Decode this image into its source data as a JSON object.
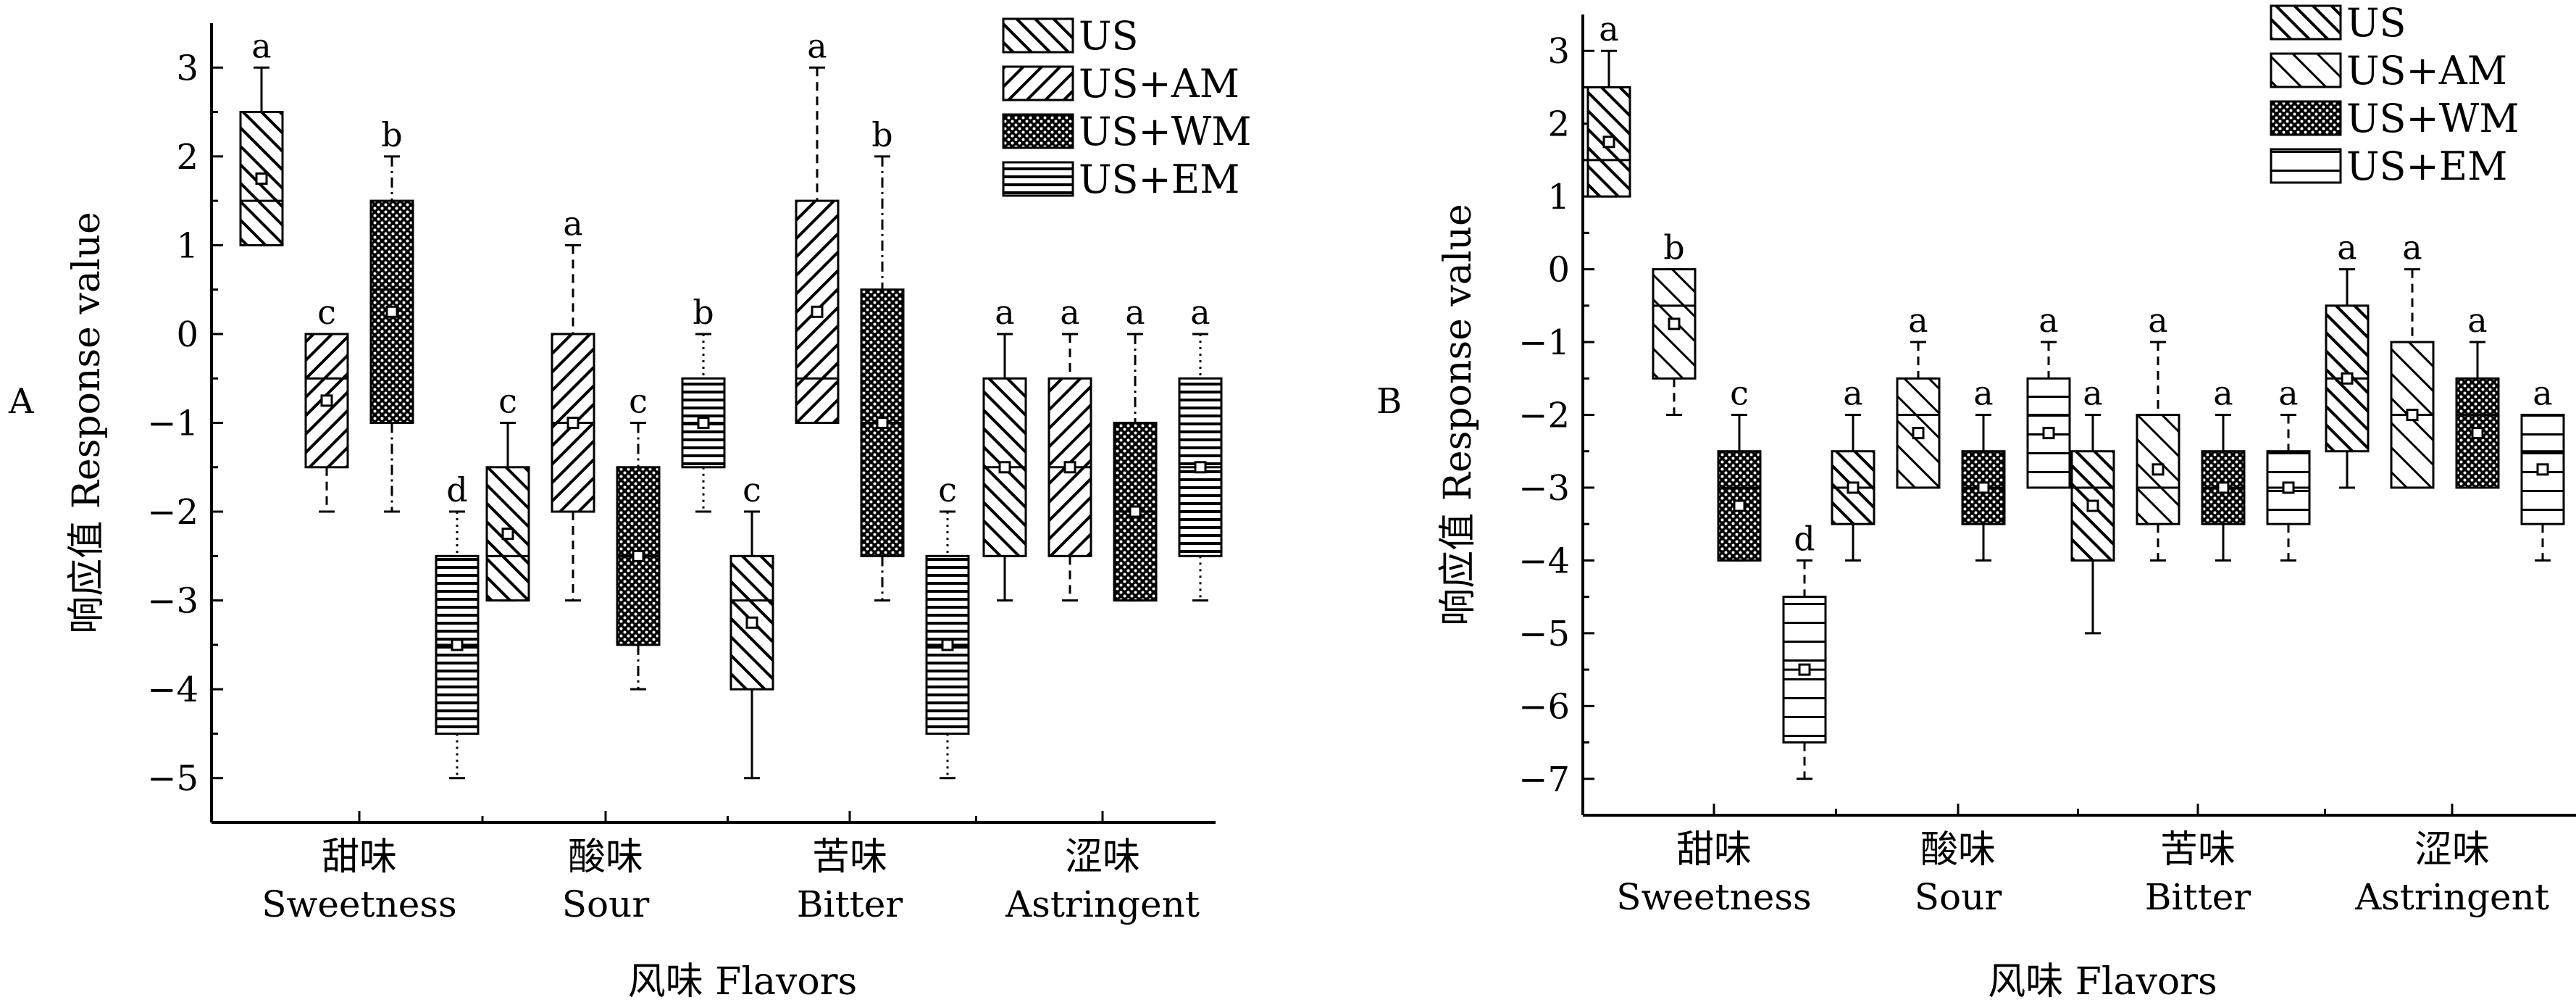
{
  "chart_data": [
    {
      "panel_label": "A",
      "type": "box",
      "xlabel": "风味 Flavors",
      "ylabel": "响应值 Response value",
      "ylim": [
        -5.5,
        3.5
      ],
      "yticks": [
        -5,
        -4,
        -3,
        -2,
        -1,
        0,
        1,
        2,
        3
      ],
      "categories": [
        {
          "cn": "甜味",
          "en": "Sweetness"
        },
        {
          "cn": "酸味",
          "en": "Sour"
        },
        {
          "cn": "苦味",
          "en": "Bitter"
        },
        {
          "cn": "涩味",
          "en": "Astringent"
        }
      ],
      "legend": {
        "placement": "top-center",
        "entries": [
          {
            "name": "US",
            "pattern": "diag-right"
          },
          {
            "name": "US+AM",
            "pattern": "diag-left"
          },
          {
            "name": "US+WM",
            "pattern": "dots"
          },
          {
            "name": "US+EM",
            "pattern": "horizontal"
          }
        ]
      },
      "series": [
        {
          "name": "US",
          "pattern": "diag-right",
          "whisker_style": "solid",
          "boxes": [
            {
              "min": 1,
              "q1": 1,
              "median": 1.5,
              "q3": 2.5,
              "max": 3,
              "mean": 1.75,
              "letter": "a"
            },
            {
              "min": -3,
              "q1": -3,
              "median": -2.5,
              "q3": -1.5,
              "max": -1,
              "mean": -2.25,
              "letter": "c"
            },
            {
              "min": -5,
              "q1": -4,
              "median": -3,
              "q3": -2.5,
              "max": -2,
              "mean": -3.25,
              "letter": "c"
            },
            {
              "min": -3,
              "q1": -2.5,
              "median": -1.5,
              "q3": -0.5,
              "max": 0,
              "mean": -1.5,
              "letter": "a"
            }
          ]
        },
        {
          "name": "US+AM",
          "pattern": "diag-left",
          "whisker_style": "dashed",
          "boxes": [
            {
              "min": -2,
              "q1": -1.5,
              "median": -0.5,
              "q3": 0,
              "max": 0,
              "mean": -0.75,
              "letter": "c"
            },
            {
              "min": -3,
              "q1": -2,
              "median": -1,
              "q3": 0,
              "max": 1,
              "mean": -1,
              "letter": "a"
            },
            {
              "min": -1,
              "q1": -1,
              "median": -0.5,
              "q3": 1.5,
              "max": 3,
              "mean": 0.25,
              "letter": "a"
            },
            {
              "min": -3,
              "q1": -2.5,
              "median": -1.5,
              "q3": -0.5,
              "max": 0,
              "mean": -1.5,
              "letter": "a"
            }
          ]
        },
        {
          "name": "US+WM",
          "pattern": "dots",
          "whisker_style": "dashdot",
          "boxes": [
            {
              "min": -2,
              "q1": -1,
              "median": 0.5,
              "q3": 1.5,
              "max": 2,
              "mean": 0.25,
              "letter": "b"
            },
            {
              "min": -4,
              "q1": -3.5,
              "median": -2.5,
              "q3": -1.5,
              "max": -1,
              "mean": -2.5,
              "letter": "c"
            },
            {
              "min": -3,
              "q1": -2.5,
              "median": -1,
              "q3": 0.5,
              "max": 2,
              "mean": -1,
              "letter": "b"
            },
            {
              "min": -3,
              "q1": -3,
              "median": -2,
              "q3": -1,
              "max": 0,
              "mean": -2,
              "letter": "a"
            }
          ]
        },
        {
          "name": "US+EM",
          "pattern": "horizontal",
          "whisker_style": "dotted",
          "boxes": [
            {
              "min": -5,
              "q1": -4.5,
              "median": -3.5,
              "q3": -2.5,
              "max": -2,
              "mean": -3.5,
              "letter": "d"
            },
            {
              "min": -2,
              "q1": -1.5,
              "median": -1,
              "q3": -0.5,
              "max": 0,
              "mean": -1,
              "letter": "b"
            },
            {
              "min": -5,
              "q1": -4.5,
              "median": -3.5,
              "q3": -2.5,
              "max": -2,
              "mean": -3.5,
              "letter": "c"
            },
            {
              "min": -3,
              "q1": -2.5,
              "median": -1.5,
              "q3": -0.5,
              "max": 0,
              "mean": -1.5,
              "letter": "a"
            }
          ]
        }
      ]
    },
    {
      "panel_label": "B",
      "type": "box",
      "xlabel": "风味 Flavors",
      "ylabel": "响应值 Response value",
      "ylim": [
        -7.5,
        3.5
      ],
      "yticks": [
        -7,
        -6,
        -5,
        -4,
        -3,
        -2,
        -1,
        0,
        1,
        2,
        3
      ],
      "categories": [
        {
          "cn": "甜味",
          "en": "Sweetness"
        },
        {
          "cn": "酸味",
          "en": "Sour"
        },
        {
          "cn": "苦味",
          "en": "Bitter"
        },
        {
          "cn": "涩味",
          "en": "Astringent"
        }
      ],
      "legend": {
        "placement": "top-right",
        "entries": [
          {
            "name": "US",
            "pattern": "diag-right"
          },
          {
            "name": "US+AM",
            "pattern": "diag-right-light"
          },
          {
            "name": "US+WM",
            "pattern": "dots"
          },
          {
            "name": "US+EM",
            "pattern": "horizontal-wide"
          }
        ]
      },
      "series": [
        {
          "name": "US",
          "pattern": "diag-right",
          "whisker_style": "solid",
          "boxes": [
            {
              "min": 1,
              "q1": 1,
              "median": 1.5,
              "q3": 2.5,
              "max": 3,
              "mean": 1.75,
              "letter": "a"
            },
            {
              "min": -4,
              "q1": -3.5,
              "median": -3,
              "q3": -2.5,
              "max": -2,
              "mean": -3,
              "letter": "a"
            },
            {
              "min": -5,
              "q1": -4,
              "median": -3,
              "q3": -2.5,
              "max": -2,
              "mean": -3.25,
              "letter": "a"
            },
            {
              "min": -3,
              "q1": -2.5,
              "median": -1.5,
              "q3": -0.5,
              "max": 0,
              "mean": -1.5,
              "letter": "a"
            }
          ]
        },
        {
          "name": "US+AM",
          "pattern": "diag-right-light",
          "whisker_style": "dashed",
          "boxes": [
            {
              "min": -2,
              "q1": -1.5,
              "median": -0.5,
              "q3": 0,
              "max": 0,
              "mean": -0.75,
              "letter": "b"
            },
            {
              "min": -3,
              "q1": -3,
              "median": -2,
              "q3": -1.5,
              "max": -1,
              "mean": -2.25,
              "letter": "a"
            },
            {
              "min": -4,
              "q1": -3.5,
              "median": -3,
              "q3": -2,
              "max": -1,
              "mean": -2.75,
              "letter": "a"
            },
            {
              "min": -3,
              "q1": -3,
              "median": -2,
              "q3": -1,
              "max": 0,
              "mean": -2,
              "letter": "a"
            }
          ]
        },
        {
          "name": "US+WM",
          "pattern": "dots",
          "whisker_style": "solid",
          "boxes": [
            {
              "min": -4,
              "q1": -4,
              "median": -3,
              "q3": -2.5,
              "max": -2,
              "mean": -3.25,
              "letter": "c"
            },
            {
              "min": -4,
              "q1": -3.5,
              "median": -3,
              "q3": -2.5,
              "max": -2,
              "mean": -3,
              "letter": "a"
            },
            {
              "min": -4,
              "q1": -3.5,
              "median": -3,
              "q3": -2.5,
              "max": -2,
              "mean": -3,
              "letter": "a"
            },
            {
              "min": -3,
              "q1": -3,
              "median": -2,
              "q3": -1.5,
              "max": -1,
              "mean": -2.25,
              "letter": "a"
            }
          ]
        },
        {
          "name": "US+EM",
          "pattern": "horizontal-wide",
          "whisker_style": "dashed",
          "boxes": [
            {
              "min": -7,
              "q1": -6.5,
              "median": -5.5,
              "q3": -4.5,
              "max": -4,
              "mean": -5.5,
              "letter": "d"
            },
            {
              "min": -3,
              "q1": -3,
              "median": -2,
              "q3": -1.5,
              "max": -1,
              "mean": -2.25,
              "letter": "a"
            },
            {
              "min": -4,
              "q1": -3.5,
              "median": -3,
              "q3": -2.5,
              "max": -2,
              "mean": -3,
              "letter": "a"
            },
            {
              "min": -4,
              "q1": -3.5,
              "median": -2.5,
              "q3": -2,
              "max": -2,
              "mean": -2.75,
              "letter": "a"
            }
          ]
        }
      ]
    }
  ]
}
